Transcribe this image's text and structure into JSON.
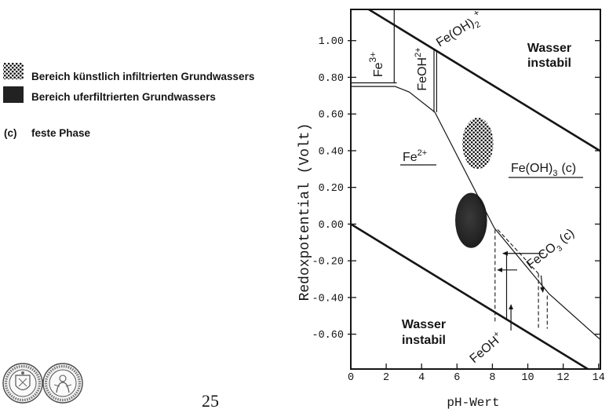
{
  "legend": {
    "artificial_label": "Bereich künstlich infiltrierten Grundwassers",
    "bank_label": "Bereich uferfiltrierten Grundwassers",
    "solid_symbol": "(c)",
    "solid_label": "feste Phase"
  },
  "page_number": "25",
  "chart_data": {
    "type": "line",
    "xlabel": "pH-Wert",
    "ylabel": "Redoxpotential (Volt)",
    "xlim": [
      0,
      14.1
    ],
    "ylim": [
      -0.79,
      1.17
    ],
    "grid": false,
    "x_tick_labels": [
      "0",
      "2",
      "4",
      "6",
      "8",
      "10",
      "12",
      "14"
    ],
    "y_tick_labels": [
      "1.00",
      "0.80",
      "0.60",
      "0.40",
      "0.20",
      "0.00",
      "-0.20",
      "-0.40",
      "-0.60"
    ],
    "lines": {
      "bold": [
        [
          [
            0,
            1.23
          ],
          [
            14.1,
            0.398
          ]
        ],
        [
          [
            0,
            0.0
          ],
          [
            14.1,
            -0.832
          ]
        ]
      ],
      "solid": [
        [
          [
            0,
            0.77
          ],
          [
            2.6,
            0.77
          ]
        ],
        [
          [
            0,
            0.75
          ],
          [
            2.5,
            0.75
          ],
          [
            3.3,
            0.72
          ],
          [
            4.75,
            0.61
          ]
        ],
        [
          [
            2.45,
            1.17
          ],
          [
            2.45,
            0.77
          ]
        ],
        [
          [
            4.7,
            0.955
          ],
          [
            4.7,
            0.61
          ]
        ],
        [
          [
            4.85,
            0.945
          ],
          [
            4.85,
            0.61
          ]
        ],
        [
          [
            4.75,
            0.61
          ],
          [
            8.1,
            -0.02
          ],
          [
            11.2,
            -0.38
          ],
          [
            14.1,
            -0.63
          ]
        ],
        [
          [
            8.8,
            -0.17
          ],
          [
            8.8,
            -0.52
          ]
        ]
      ],
      "dashed": [
        [
          [
            8.15,
            -0.03
          ],
          [
            8.15,
            -0.53
          ]
        ],
        [
          [
            8.3,
            -0.03
          ],
          [
            10.6,
            -0.27
          ]
        ],
        [
          [
            10.6,
            -0.27
          ],
          [
            10.6,
            -0.57
          ]
        ],
        [
          [
            11.1,
            -0.39
          ],
          [
            11.1,
            -0.57
          ]
        ]
      ]
    },
    "arrows": [
      [
        [
          10.9,
          -0.16
        ],
        [
          8.6,
          -0.16
        ]
      ],
      [
        [
          9.4,
          -0.25
        ],
        [
          8.3,
          -0.25
        ]
      ],
      [
        [
          9.05,
          -0.58
        ],
        [
          9.05,
          -0.44
        ]
      ],
      [
        [
          10.75,
          -0.28
        ],
        [
          10.85,
          -0.37
        ]
      ]
    ],
    "regions": {
      "artificial_infiltration": {
        "ph": [
          6.3,
          8.05
        ],
        "eh": [
          0.3,
          0.58
        ]
      },
      "bank_filtration": {
        "ph": [
          5.9,
          7.7
        ],
        "eh": [
          -0.13,
          0.17
        ]
      }
    },
    "annotations": {
      "fe3": {
        "base": "Fe",
        "sup": "3+"
      },
      "feoh2": {
        "base": "FeOH",
        "sup": "2+"
      },
      "feoh2_plus": {
        "base": "Fe(OH)",
        "sub": "2",
        "sup": "+"
      },
      "water_upper": [
        "Wasser",
        "instabil"
      ],
      "fe2": {
        "base": "Fe",
        "sup": "2+"
      },
      "feoh3": {
        "base": "Fe(OH)",
        "sub": "3",
        "phase": "(c)"
      },
      "feco3": {
        "base": "FeCO",
        "sub": "3",
        "phase": "(c)"
      },
      "water_lower": [
        "Wasser",
        "instabil"
      ],
      "feoh_plus": {
        "base": "FeOH",
        "sup": "+"
      }
    }
  }
}
